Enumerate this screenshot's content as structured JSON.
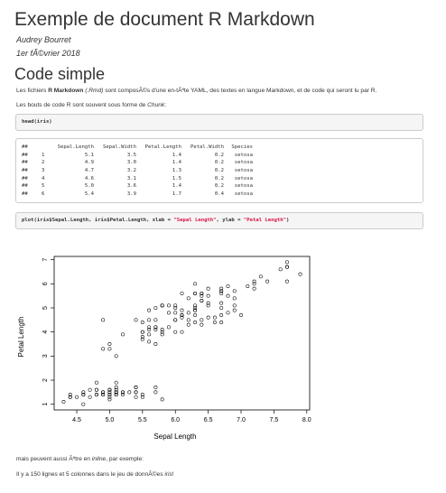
{
  "document": {
    "title": "Exemple de document R Markdown",
    "author": "Audrey Bourret",
    "date": "1er fÃ©vrier 2018"
  },
  "section": {
    "heading": "Code simple",
    "p1": {
      "before": "Les fichiers ",
      "bold": "R Markdown",
      "ext": " (.Rmd)",
      "after": " sont composÃ©s d'une en-tÃªte YAML, des textes en langue Markdown, et de code qui seront lu par R."
    },
    "p2": {
      "before": "Les bouts de code R sont souvent sous forme de ",
      "italic": "Chunk",
      "after": ":"
    },
    "code1": "head(iris)",
    "output": {
      "prefix": "##",
      "header": [
        "Sepal.Length",
        "Sepal.Width",
        "Petal.Length",
        "Petal.Width",
        "Species"
      ],
      "rows": [
        [
          "1",
          "5.1",
          "3.5",
          "1.4",
          "0.2",
          "setosa"
        ],
        [
          "2",
          "4.9",
          "3.0",
          "1.4",
          "0.2",
          "setosa"
        ],
        [
          "3",
          "4.7",
          "3.2",
          "1.3",
          "0.2",
          "setosa"
        ],
        [
          "4",
          "4.6",
          "3.1",
          "1.5",
          "0.2",
          "setosa"
        ],
        [
          "5",
          "5.0",
          "3.6",
          "1.4",
          "0.2",
          "setosa"
        ],
        [
          "6",
          "5.4",
          "3.9",
          "1.7",
          "0.4",
          "setosa"
        ]
      ]
    },
    "code3": {
      "part1": "plot(iris$Sepal.Length, iris$Petal.Length, xlab = ",
      "str1": "\"Sepal Length\"",
      "part2": ", ylab = ",
      "str2": "\"Petal Length\"",
      "part3": ")"
    },
    "p3": {
      "before": "mais peuvent aussi Ãªtre en ",
      "italic": "inline",
      "after": ", par exemple:"
    },
    "p4": {
      "before": "Il y a 150 lignes et 5 colonnes dans le jeu de donnÃ©es ",
      "italic": "iris",
      "after": "!"
    }
  },
  "chart_data": {
    "type": "scatter",
    "xlabel": "Sepal Length",
    "ylabel": "Petal Length",
    "xlim": [
      4.3,
      7.9
    ],
    "ylim": [
      1,
      6.9
    ],
    "xticks": [
      "4.5",
      "5.0",
      "5.5",
      "6.0",
      "6.5",
      "7.0",
      "7.5",
      "8.0"
    ],
    "yticks": [
      "1",
      "2",
      "3",
      "4",
      "5",
      "6",
      "7"
    ],
    "points": [
      [
        5.1,
        1.4
      ],
      [
        4.9,
        1.4
      ],
      [
        4.7,
        1.3
      ],
      [
        4.6,
        1.5
      ],
      [
        5.0,
        1.4
      ],
      [
        5.4,
        1.7
      ],
      [
        4.6,
        1.4
      ],
      [
        5.0,
        1.5
      ],
      [
        4.4,
        1.4
      ],
      [
        4.9,
        1.5
      ],
      [
        5.4,
        1.5
      ],
      [
        4.8,
        1.6
      ],
      [
        4.8,
        1.4
      ],
      [
        4.3,
        1.1
      ],
      [
        5.8,
        1.2
      ],
      [
        5.7,
        1.5
      ],
      [
        5.4,
        1.3
      ],
      [
        5.1,
        1.4
      ],
      [
        5.7,
        1.7
      ],
      [
        5.1,
        1.5
      ],
      [
        5.4,
        1.7
      ],
      [
        5.1,
        1.5
      ],
      [
        4.6,
        1.0
      ],
      [
        5.1,
        1.7
      ],
      [
        4.8,
        1.9
      ],
      [
        5.0,
        1.6
      ],
      [
        5.0,
        1.6
      ],
      [
        5.2,
        1.5
      ],
      [
        5.2,
        1.4
      ],
      [
        4.7,
        1.6
      ],
      [
        4.8,
        1.6
      ],
      [
        5.4,
        1.5
      ],
      [
        5.2,
        1.5
      ],
      [
        5.5,
        1.4
      ],
      [
        4.9,
        1.5
      ],
      [
        5.0,
        1.2
      ],
      [
        5.5,
        1.3
      ],
      [
        4.9,
        1.4
      ],
      [
        4.4,
        1.3
      ],
      [
        5.1,
        1.5
      ],
      [
        5.0,
        1.3
      ],
      [
        4.5,
        1.3
      ],
      [
        4.4,
        1.3
      ],
      [
        5.0,
        1.6
      ],
      [
        5.1,
        1.9
      ],
      [
        4.8,
        1.4
      ],
      [
        5.1,
        1.6
      ],
      [
        4.6,
        1.4
      ],
      [
        5.3,
        1.5
      ],
      [
        5.0,
        1.4
      ],
      [
        7.0,
        4.7
      ],
      [
        6.4,
        4.5
      ],
      [
        6.9,
        4.9
      ],
      [
        5.5,
        4.0
      ],
      [
        6.5,
        4.6
      ],
      [
        5.7,
        4.5
      ],
      [
        6.3,
        4.7
      ],
      [
        4.9,
        3.3
      ],
      [
        6.6,
        4.6
      ],
      [
        5.2,
        3.9
      ],
      [
        5.0,
        3.5
      ],
      [
        5.9,
        4.2
      ],
      [
        6.0,
        4.0
      ],
      [
        6.1,
        4.7
      ],
      [
        5.6,
        3.6
      ],
      [
        6.7,
        4.4
      ],
      [
        5.6,
        4.5
      ],
      [
        5.8,
        4.1
      ],
      [
        6.2,
        4.5
      ],
      [
        5.6,
        3.9
      ],
      [
        5.9,
        4.8
      ],
      [
        6.1,
        4.0
      ],
      [
        6.3,
        4.9
      ],
      [
        6.1,
        4.7
      ],
      [
        6.4,
        4.3
      ],
      [
        6.6,
        4.4
      ],
      [
        6.8,
        4.8
      ],
      [
        6.7,
        5.0
      ],
      [
        6.0,
        4.5
      ],
      [
        5.7,
        3.5
      ],
      [
        5.5,
        3.8
      ],
      [
        5.5,
        3.7
      ],
      [
        5.8,
        3.9
      ],
      [
        6.0,
        5.1
      ],
      [
        5.4,
        4.5
      ],
      [
        6.0,
        4.5
      ],
      [
        6.7,
        4.7
      ],
      [
        6.3,
        4.4
      ],
      [
        5.6,
        4.1
      ],
      [
        5.5,
        4.0
      ],
      [
        5.5,
        4.4
      ],
      [
        6.1,
        4.6
      ],
      [
        5.8,
        4.0
      ],
      [
        5.0,
        3.3
      ],
      [
        5.6,
        4.2
      ],
      [
        5.7,
        4.2
      ],
      [
        5.7,
        4.2
      ],
      [
        6.2,
        4.3
      ],
      [
        5.1,
        3.0
      ],
      [
        5.7,
        4.1
      ],
      [
        6.3,
        6.0
      ],
      [
        5.8,
        5.1
      ],
      [
        7.1,
        5.9
      ],
      [
        6.3,
        5.6
      ],
      [
        6.5,
        5.8
      ],
      [
        7.6,
        6.6
      ],
      [
        4.9,
        4.5
      ],
      [
        7.3,
        6.3
      ],
      [
        6.7,
        5.8
      ],
      [
        7.2,
        6.1
      ],
      [
        6.5,
        5.1
      ],
      [
        6.4,
        5.3
      ],
      [
        6.8,
        5.5
      ],
      [
        5.7,
        5.0
      ],
      [
        5.8,
        5.1
      ],
      [
        6.4,
        5.3
      ],
      [
        6.5,
        5.5
      ],
      [
        7.7,
        6.7
      ],
      [
        7.7,
        6.9
      ],
      [
        6.0,
        5.0
      ],
      [
        6.9,
        5.7
      ],
      [
        5.6,
        4.9
      ],
      [
        7.7,
        6.7
      ],
      [
        6.3,
        4.9
      ],
      [
        6.7,
        5.7
      ],
      [
        7.2,
        6.0
      ],
      [
        6.2,
        4.8
      ],
      [
        6.1,
        4.9
      ],
      [
        6.4,
        5.6
      ],
      [
        7.2,
        5.8
      ],
      [
        7.4,
        6.1
      ],
      [
        7.9,
        6.4
      ],
      [
        6.4,
        5.6
      ],
      [
        6.3,
        5.1
      ],
      [
        6.1,
        5.6
      ],
      [
        7.7,
        6.1
      ],
      [
        6.3,
        5.6
      ],
      [
        6.4,
        5.5
      ],
      [
        6.0,
        4.8
      ],
      [
        6.9,
        5.4
      ],
      [
        6.7,
        5.6
      ],
      [
        6.9,
        5.1
      ],
      [
        5.8,
        5.1
      ],
      [
        6.8,
        5.9
      ],
      [
        6.7,
        5.7
      ],
      [
        6.7,
        5.2
      ],
      [
        6.3,
        5.0
      ],
      [
        6.5,
        5.2
      ],
      [
        6.2,
        5.4
      ],
      [
        5.9,
        5.1
      ]
    ]
  }
}
